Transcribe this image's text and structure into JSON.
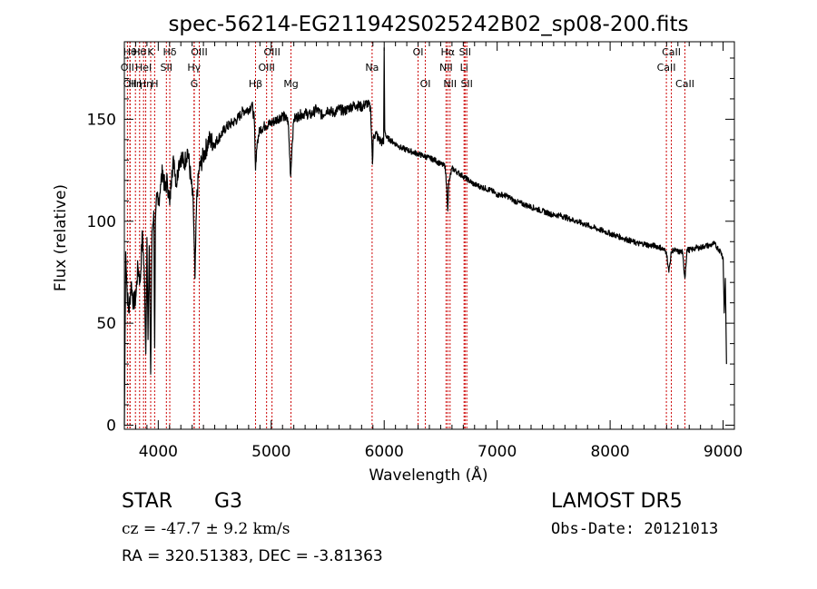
{
  "chart_data": {
    "type": "line",
    "title": "spec-56214-EG211942S025242B02_sp08-200.fits",
    "xlabel": "Wavelength (Å)",
    "ylabel": "Flux (relative)",
    "xlim": [
      3700,
      9100
    ],
    "ylim": [
      -2,
      188
    ],
    "xticks": [
      4000,
      5000,
      6000,
      7000,
      8000,
      9000
    ],
    "yticks": [
      0,
      50,
      100,
      150
    ],
    "grid": false,
    "series": [
      {
        "color": "#000000",
        "x": [
          3700,
          3712,
          3725,
          3740,
          3760,
          3780,
          3800,
          3820,
          3840,
          3860,
          3880,
          3890,
          3900,
          3910,
          3920,
          3933,
          3945,
          3960,
          3968,
          3975,
          3990,
          4000,
          4020,
          4040,
          4060,
          4080,
          4102,
          4120,
          4140,
          4160,
          4180,
          4200,
          4230,
          4260,
          4290,
          4310,
          4325,
          4340,
          4360,
          4400,
          4450,
          4500,
          4550,
          4600,
          4650,
          4700,
          4750,
          4800,
          4830,
          4850,
          4861,
          4870,
          4880,
          4900,
          4950,
          5000,
          5050,
          5100,
          5150,
          5172,
          5183,
          5200,
          5250,
          5300,
          5350,
          5400,
          5450,
          5500,
          5550,
          5600,
          5650,
          5700,
          5750,
          5800,
          5850,
          5880,
          5890,
          5896,
          5905,
          5930,
          5950,
          5980,
          5995,
          6000,
          6005,
          6020,
          6050,
          6100,
          6150,
          6200,
          6250,
          6300,
          6350,
          6400,
          6450,
          6500,
          6540,
          6555,
          6563,
          6570,
          6600,
          6650,
          6700,
          6750,
          6800,
          6850,
          6900,
          6950,
          7000,
          7050,
          7100,
          7150,
          7200,
          7250,
          7300,
          7350,
          7400,
          7450,
          7500,
          7550,
          7600,
          7650,
          7700,
          7750,
          7800,
          7850,
          7900,
          7950,
          8000,
          8050,
          8100,
          8150,
          8200,
          8250,
          8300,
          8350,
          8400,
          8450,
          8498,
          8520,
          8542,
          8560,
          8600,
          8640,
          8662,
          8680,
          8720,
          8760,
          8800,
          8840,
          8880,
          8920,
          8950,
          8980,
          9000,
          9010,
          9020,
          9030
        ],
        "y": [
          0,
          85,
          65,
          55,
          70,
          60,
          62,
          78,
          70,
          95,
          68,
          35,
          92,
          42,
          88,
          25,
          95,
          105,
          38,
          100,
          112,
          108,
          118,
          125,
          115,
          120,
          108,
          125,
          130,
          118,
          128,
          132,
          128,
          135,
          120,
          108,
          72,
          110,
          125,
          132,
          140,
          138,
          142,
          146,
          148,
          150,
          154,
          155,
          157,
          150,
          125,
          135,
          140,
          145,
          147,
          148,
          150,
          152,
          149,
          122,
          136,
          150,
          152,
          153,
          152,
          155,
          152,
          155,
          153,
          155,
          154,
          156,
          157,
          156,
          158,
          155,
          140,
          128,
          142,
          143,
          140,
          139,
          138,
          185,
          145,
          141,
          140,
          138,
          136,
          135,
          134,
          133,
          132,
          131,
          130,
          128,
          127,
          115,
          105,
          118,
          126,
          124,
          122,
          120,
          118,
          117,
          116,
          115,
          113,
          113,
          112,
          110,
          109,
          108,
          107,
          106,
          105,
          104,
          103,
          103,
          102,
          101,
          100,
          99,
          98,
          97,
          96,
          95,
          94,
          93,
          92,
          91,
          90,
          89,
          89,
          88,
          88,
          87,
          85,
          75,
          85,
          86,
          85,
          85,
          72,
          86,
          86,
          87,
          87,
          88,
          88,
          89,
          87,
          85,
          82,
          55,
          72,
          30
        ]
      }
    ],
    "lines": [
      {
        "x": 3727,
        "label": "OII",
        "row": 1
      },
      {
        "x": 3750,
        "label": "Hθ",
        "row": 0
      },
      {
        "x": 3750,
        "label": "OII",
        "row": 2
      },
      {
        "x": 3798,
        "label": "Hη",
        "row": 2
      },
      {
        "x": 3835,
        "label": "Hθ",
        "row": 0
      },
      {
        "x": 3870,
        "label": "HeI",
        "row": 1
      },
      {
        "x": 3889,
        "label": "Hη",
        "row": 2
      },
      {
        "x": 3933,
        "label": "K",
        "row": 0
      },
      {
        "x": 3968,
        "label": "H",
        "row": 2
      },
      {
        "x": 4072,
        "label": "SII",
        "row": 1
      },
      {
        "x": 4102,
        "label": "Hδ",
        "row": 0
      },
      {
        "x": 4317,
        "label": "Hγ",
        "row": 1
      },
      {
        "x": 4319,
        "label": "G",
        "row": 2
      },
      {
        "x": 4363,
        "label": "OIII",
        "row": 0
      },
      {
        "x": 4861,
        "label": "Hβ",
        "row": 2
      },
      {
        "x": 4959,
        "label": "OIII",
        "row": 1
      },
      {
        "x": 5007,
        "label": "OIII",
        "row": 0
      },
      {
        "x": 5175,
        "label": "Mg",
        "row": 2
      },
      {
        "x": 5893,
        "label": "Na",
        "row": 1
      },
      {
        "x": 6300,
        "label": "OI",
        "row": 0
      },
      {
        "x": 6364,
        "label": "OI",
        "row": 2
      },
      {
        "x": 6548,
        "label": "NII",
        "row": 1
      },
      {
        "x": 6563,
        "label": "Hα",
        "row": 0
      },
      {
        "x": 6583,
        "label": "NII",
        "row": 2
      },
      {
        "x": 6707,
        "label": "Li",
        "row": 1
      },
      {
        "x": 6716,
        "label": "SII",
        "row": 0
      },
      {
        "x": 6731,
        "label": "SII",
        "row": 2
      },
      {
        "x": 8498,
        "label": "CaII",
        "row": 1
      },
      {
        "x": 8542,
        "label": "CaII",
        "row": 0
      },
      {
        "x": 8662,
        "label": "CaII",
        "row": 2
      }
    ],
    "line_color": "#cc0000"
  },
  "info": {
    "object_class": "STAR",
    "subclass": "G3",
    "cz": "cz = -47.7 ± 9.2 km/s",
    "radec": "RA = 320.51383, DEC =  -3.81363",
    "survey": "LAMOST DR5",
    "obs_date": "Obs-Date: 20121013"
  }
}
